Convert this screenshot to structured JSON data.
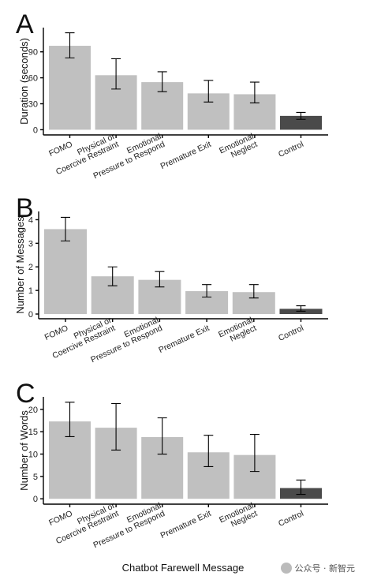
{
  "figure": {
    "x_axis_title": "Chatbot Farewell Message",
    "watermark": "公众号 · 新智元",
    "colors": {
      "bar": "#c0c0c0",
      "control_bar": "#4a4a4a",
      "axis": "#000000"
    }
  },
  "chart_data": [
    {
      "panel": "A",
      "type": "bar",
      "categories": [
        "FOMO",
        "Physical or Coercive Restraint",
        "Emotional Pressure to Respond",
        "Premature Exit",
        "Emotional Neglect",
        "Control"
      ],
      "category_lines": [
        [
          "FOMO"
        ],
        [
          "Physical or",
          "Coercive Restraint"
        ],
        [
          "Emotional",
          "Pressure to Respond"
        ],
        [
          "Premature Exit"
        ],
        [
          "Emotional",
          "Neglect"
        ],
        [
          "Control"
        ]
      ],
      "values": [
        97,
        63,
        55,
        42,
        41,
        16
      ],
      "error_low": [
        83,
        47,
        44,
        32,
        31,
        12
      ],
      "error_high": [
        112,
        82,
        67,
        57,
        55,
        20
      ],
      "ylabel": "Duration (seconds)",
      "yticks": [
        0,
        30,
        60,
        90
      ],
      "ylim": [
        -6,
        118
      ]
    },
    {
      "panel": "B",
      "type": "bar",
      "categories": [
        "FOMO",
        "Physical or Coercive Restraint",
        "Emotional Pressure to Respond",
        "Premature Exit",
        "Emotional Neglect",
        "Control"
      ],
      "category_lines": [
        [
          "FOMO"
        ],
        [
          "Physical or",
          "Coercive Restraint"
        ],
        [
          "Emotional",
          "Pressure to Respond"
        ],
        [
          "Premature Exit"
        ],
        [
          "Emotional",
          "Neglect"
        ],
        [
          "Control"
        ]
      ],
      "values": [
        3.6,
        1.6,
        1.45,
        0.97,
        0.93,
        0.22
      ],
      "error_low": [
        3.1,
        1.2,
        1.15,
        0.72,
        0.68,
        0.12
      ],
      "error_high": [
        4.1,
        2.0,
        1.8,
        1.25,
        1.25,
        0.35
      ],
      "ylabel": "Number of Messages",
      "yticks": [
        0,
        1,
        2,
        3,
        4
      ],
      "ylim": [
        -0.2,
        4.35
      ]
    },
    {
      "panel": "C",
      "type": "bar",
      "categories": [
        "FOMO",
        "Physical or Coercive Restraint",
        "Emotional Pressure to Respond",
        "Premature Exit",
        "Emotional Neglect",
        "Control"
      ],
      "category_lines": [
        [
          "FOMO"
        ],
        [
          "Physical or",
          "Coercive Restraint"
        ],
        [
          "Emotional",
          "Pressure to Respond"
        ],
        [
          "Premature Exit"
        ],
        [
          "Emotional",
          "Neglect"
        ],
        [
          "Control"
        ]
      ],
      "values": [
        17.3,
        15.9,
        13.8,
        10.4,
        9.8,
        2.4
      ],
      "error_low": [
        13.9,
        10.9,
        10.0,
        7.2,
        6.1,
        1.0
      ],
      "error_high": [
        21.6,
        21.3,
        18.1,
        14.2,
        14.4,
        4.2
      ],
      "ylabel": "Number of Words",
      "yticks": [
        0,
        5,
        10,
        15,
        20
      ],
      "ylim": [
        -1.2,
        22.8
      ]
    }
  ]
}
